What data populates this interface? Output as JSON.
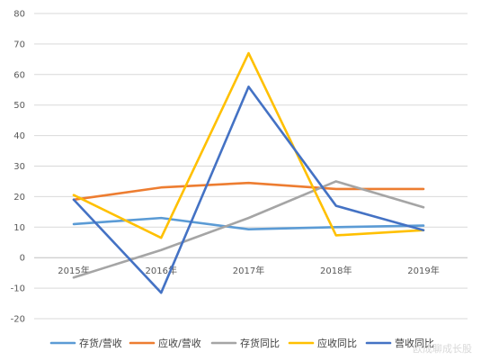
{
  "chart_data": {
    "type": "line",
    "categories": [
      "2015年",
      "2016年",
      "2017年",
      "2018年",
      "2019年"
    ],
    "ylim": [
      -20,
      80
    ],
    "yticks": [
      -20,
      -10,
      0,
      10,
      20,
      30,
      40,
      50,
      60,
      70,
      80
    ],
    "grid": "horizontal",
    "legend_position": "bottom",
    "series": [
      {
        "name": "存货/营收",
        "color": "#5b9bd5",
        "values": [
          11,
          13,
          9.3,
          10,
          10.5
        ]
      },
      {
        "name": "应收/营收",
        "color": "#ed7d31",
        "values": [
          19,
          23,
          24.5,
          22.5,
          22.5
        ]
      },
      {
        "name": "存货同比",
        "color": "#a5a5a5",
        "values": [
          -6.5,
          2.5,
          13,
          25,
          16.5
        ]
      },
      {
        "name": "应收同比",
        "color": "#ffc000",
        "values": [
          20.5,
          6.5,
          67,
          7.3,
          9
        ]
      },
      {
        "name": "营收同比",
        "color": "#4472c4",
        "values": [
          19,
          -11.5,
          56,
          17,
          9
        ]
      }
    ]
  },
  "watermark": "欧成聊成长股"
}
